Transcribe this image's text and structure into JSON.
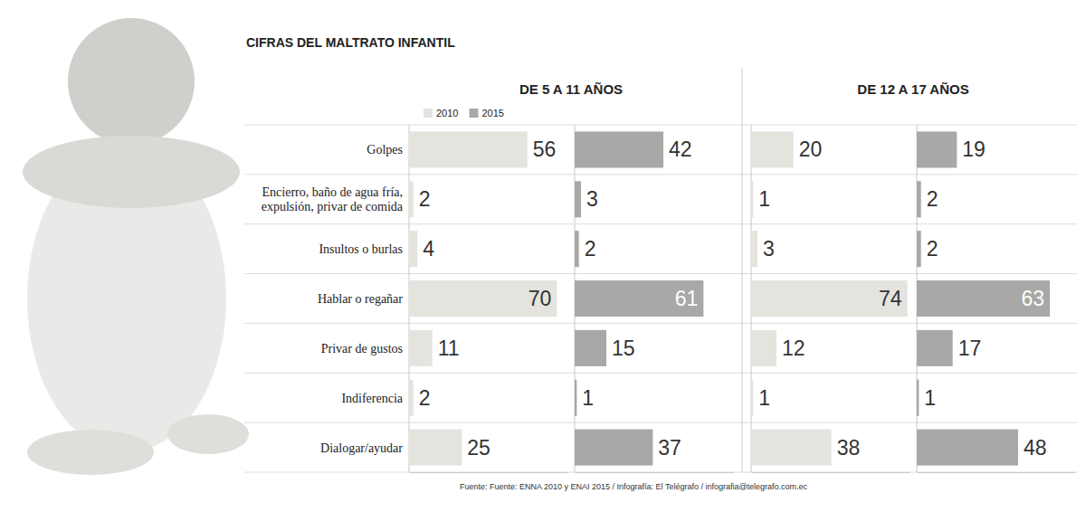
{
  "chart_data": {
    "type": "bar",
    "orientation": "horizontal",
    "data_labels": true,
    "tick_labels": false,
    "legend": "top",
    "title": "CIFRAS DEL MALTRATO INFANTIL",
    "source": "Fuente: Fuente: ENNA 2010 y ENAI 2015 / Infografía: El Telégrafo / infografia@telegrafo.com.ec",
    "categories": [
      "Golpes",
      "Encierro, baño de agua fría, expulsión, privar de comida",
      "Insultos o burlas",
      "Hablar o regañar",
      "Privar de gustos",
      "Indiferencia",
      "Dialogar/ayudar"
    ],
    "series": [
      {
        "name": "2010",
        "color": "#e4e3de"
      },
      {
        "name": "2015",
        "color": "#a8a8a6"
      }
    ],
    "groups": [
      {
        "title": "DE 5 A 11 AÑOS",
        "values": [
          [
            56,
            2,
            4,
            70,
            11,
            2,
            25
          ],
          [
            42,
            3,
            2,
            61,
            15,
            1,
            37
          ]
        ]
      },
      {
        "title": "DE 12 A 17 AÑOS",
        "values": [
          [
            20,
            1,
            3,
            74,
            12,
            1,
            38
          ],
          [
            19,
            2,
            2,
            63,
            17,
            1,
            48
          ]
        ]
      }
    ],
    "xlim": [
      0,
      75
    ]
  }
}
